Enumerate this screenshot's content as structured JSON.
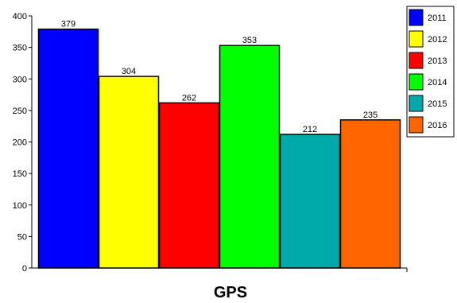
{
  "chart_data": {
    "type": "bar",
    "title": "",
    "xlabel": "",
    "ylabel": "",
    "categories": [
      "GPS"
    ],
    "series": [
      {
        "name": "2011",
        "values": [
          379
        ],
        "color": "#0000ff"
      },
      {
        "name": "2012",
        "values": [
          304
        ],
        "color": "#ffff00"
      },
      {
        "name": "2013",
        "values": [
          262
        ],
        "color": "#ff0000"
      },
      {
        "name": "2014",
        "values": [
          353
        ],
        "color": "#00ff00"
      },
      {
        "name": "2015",
        "values": [
          212
        ],
        "color": "#00aaaa"
      },
      {
        "name": "2016",
        "values": [
          235
        ],
        "color": "#ff6600"
      }
    ],
    "ylim": [
      0,
      400
    ],
    "yticks": [
      0,
      50,
      100,
      150,
      200,
      250,
      300,
      350,
      400
    ],
    "grid": false,
    "legend": "top-right"
  }
}
